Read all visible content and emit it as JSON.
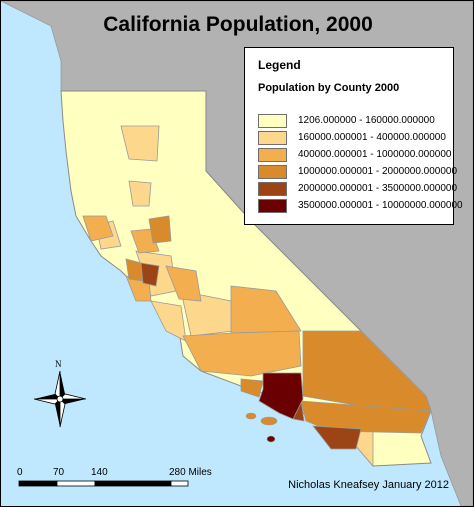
{
  "title": "California Population, 2000",
  "legend": {
    "title": "Legend",
    "subtitle": "Population by County 2000",
    "classes": [
      {
        "label": "1206.000000 - 160000.000000",
        "color": "#ffffbf"
      },
      {
        "label": "160000.000001 - 400000.000000",
        "color": "#fdd88c"
      },
      {
        "label": "400000.000001 - 1000000.000000",
        "color": "#f3ae4f"
      },
      {
        "label": "1000000.000001 - 2000000.000000",
        "color": "#d98a2a"
      },
      {
        "label": "2000000.000001 - 3500000.000000",
        "color": "#9c4416"
      },
      {
        "label": "3500000.000001 - 10000000.000000",
        "color": "#6b0000"
      }
    ]
  },
  "colors": {
    "ocean": "#bfe8ff",
    "land_other": "#b2b2b2",
    "county_border": "#9a9a9a"
  },
  "north_arrow": {
    "label": "N",
    "icon": "compass-rose-icon"
  },
  "scale_bar": {
    "ticks": [
      "0",
      "70",
      "140",
      "280 Miles"
    ]
  },
  "credit": "Nicholas Kneafsey January 2012"
}
